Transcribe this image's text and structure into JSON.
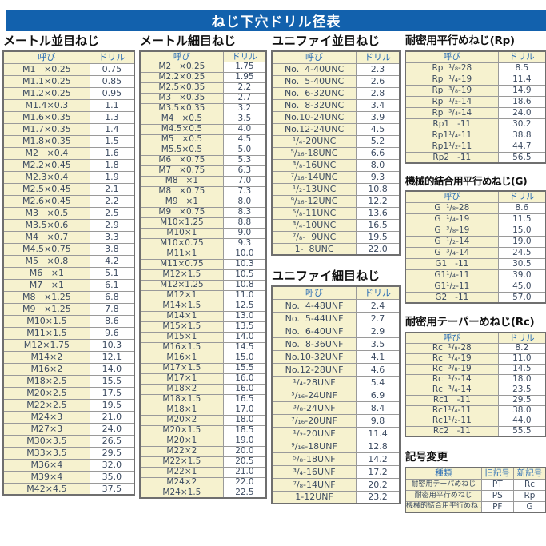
{
  "header": {
    "title": "ねじ下穴ドリル径表"
  },
  "col_headers": {
    "name": "呼び",
    "drill": "ドリル"
  },
  "colors": {
    "banner_bg": "#1261ad",
    "banner_text": "#ffffff",
    "cell_yellow": "#f6f2cf",
    "cell_white": "#ffffff",
    "text_dark": "#3c4b61",
    "header_text_blue": "#2a6db5"
  },
  "tables": {
    "metric_coarse": {
      "title": "メートル並目ねじ",
      "rows": [
        [
          "M1   ×0.25",
          "0.75"
        ],
        [
          "M1.1×0.25",
          "0.85"
        ],
        [
          "M1.2×0.25",
          "0.95"
        ],
        [
          "M1.4×0.3",
          "1.1"
        ],
        [
          "M1.6×0.35",
          "1.3"
        ],
        [
          "M1.7×0.35",
          "1.4"
        ],
        [
          "M1.8×0.35",
          "1.5"
        ],
        [
          "M2   ×0.4",
          "1.6"
        ],
        [
          "M2.2×0.45",
          "1.8"
        ],
        [
          "M2.3×0.4",
          "1.9"
        ],
        [
          "M2.5×0.45",
          "2.1"
        ],
        [
          "M2.6×0.45",
          "2.2"
        ],
        [
          "M3   ×0.5",
          "2.5"
        ],
        [
          "M3.5×0.6",
          "2.9"
        ],
        [
          "M4   ×0.7",
          "3.3"
        ],
        [
          "M4.5×0.75",
          "3.8"
        ],
        [
          "M5   ×0.8",
          "4.2"
        ],
        [
          "M6   ×1",
          "5.1"
        ],
        [
          "M7   ×1",
          "6.1"
        ],
        [
          "M8   ×1.25",
          "6.8"
        ],
        [
          "M9   ×1.25",
          "7.8"
        ],
        [
          "M10×1.5",
          "8.6"
        ],
        [
          "M11×1.5",
          "9.6"
        ],
        [
          "M12×1.75",
          "10.3"
        ],
        [
          "M14×2",
          "12.1"
        ],
        [
          "M16×2",
          "14.0"
        ],
        [
          "M18×2.5",
          "15.5"
        ],
        [
          "M20×2.5",
          "17.5"
        ],
        [
          "M22×2.5",
          "19.5"
        ],
        [
          "M24×3",
          "21.0"
        ],
        [
          "M27×3",
          "24.0"
        ],
        [
          "M30×3.5",
          "26.5"
        ],
        [
          "M33×3.5",
          "29.5"
        ],
        [
          "M36×4",
          "32.0"
        ],
        [
          "M39×4",
          "35.0"
        ],
        [
          "M42×4.5",
          "37.5"
        ]
      ]
    },
    "metric_fine": {
      "title": "メートル細目ねじ",
      "rows": [
        [
          "M2   ×0.25",
          "1.75"
        ],
        [
          "M2.2×0.25",
          "1.95"
        ],
        [
          "M2.5×0.35",
          "2.2"
        ],
        [
          "M3   ×0.35",
          "2.7"
        ],
        [
          "M3.5×0.35",
          "3.2"
        ],
        [
          "M4   ×0.5",
          "3.5"
        ],
        [
          "M4.5×0.5",
          "4.0"
        ],
        [
          "M5   ×0.5",
          "4.5"
        ],
        [
          "M5.5×0.5",
          "5.0"
        ],
        [
          "M6   ×0.75",
          "5.3"
        ],
        [
          "M7   ×0.75",
          "6.3"
        ],
        [
          "M8   ×1",
          "7.0"
        ],
        [
          "M8   ×0.75",
          "7.3"
        ],
        [
          "M9   ×1",
          "8.0"
        ],
        [
          "M9   ×0.75",
          "8.3"
        ],
        [
          "M10×1.25",
          "8.8"
        ],
        [
          "M10×1",
          "9.0"
        ],
        [
          "M10×0.75",
          "9.3"
        ],
        [
          "M11×1",
          "10.0"
        ],
        [
          "M11×0.75",
          "10.3"
        ],
        [
          "M12×1.5",
          "10.5"
        ],
        [
          "M12×1.25",
          "10.8"
        ],
        [
          "M12×1",
          "11.0"
        ],
        [
          "M14×1.5",
          "12.5"
        ],
        [
          "M14×1",
          "13.0"
        ],
        [
          "M15×1.5",
          "13.5"
        ],
        [
          "M15×1",
          "14.0"
        ],
        [
          "M16×1.5",
          "14.5"
        ],
        [
          "M16×1",
          "15.0"
        ],
        [
          "M17×1.5",
          "15.5"
        ],
        [
          "M17×1",
          "16.0"
        ],
        [
          "M18×2",
          "16.0"
        ],
        [
          "M18×1.5",
          "16.5"
        ],
        [
          "M18×1",
          "17.0"
        ],
        [
          "M20×2",
          "18.0"
        ],
        [
          "M20×1.5",
          "18.5"
        ],
        [
          "M20×1",
          "19.0"
        ],
        [
          "M22×2",
          "20.0"
        ],
        [
          "M22×1.5",
          "20.5"
        ],
        [
          "M22×1",
          "21.0"
        ],
        [
          "M24×2",
          "22.0"
        ],
        [
          "M24×1.5",
          "22.5"
        ]
      ]
    },
    "unified_coarse": {
      "title": "ユニファイ並目ねじ",
      "rows": [
        [
          "No.  4-40UNC",
          "2.3"
        ],
        [
          "No.  5-40UNC",
          "2.6"
        ],
        [
          "No.  6-32UNC",
          "2.8"
        ],
        [
          "No.  8-32UNC",
          "3.4"
        ],
        [
          "No.10-24UNC",
          "3.9"
        ],
        [
          "No.12-24UNC",
          "4.5"
        ],
        [
          "¹/₄-20UNC",
          "5.2"
        ],
        [
          "⁵/₁₆-18UNC",
          "6.6"
        ],
        [
          "³/₈-16UNC",
          "8.0"
        ],
        [
          "⁷/₁₆-14UNC",
          "9.3"
        ],
        [
          "¹/₂-13UNC",
          "10.8"
        ],
        [
          "⁹/₁₆-12UNC",
          "12.2"
        ],
        [
          "⁵/₈-11UNC",
          "13.6"
        ],
        [
          "³/₄-10UNC",
          "16.5"
        ],
        [
          "⁷/₈-  9UNC",
          "19.5"
        ],
        [
          "1-  8UNC",
          "22.0"
        ]
      ]
    },
    "unified_fine": {
      "title": "ユニファイ細目ねじ",
      "rows": [
        [
          "No.  4-48UNF",
          "2.4"
        ],
        [
          "No.  5-44UNF",
          "2.7"
        ],
        [
          "No.  6-40UNF",
          "2.9"
        ],
        [
          "No.  8-36UNF",
          "3.5"
        ],
        [
          "No.10-32UNF",
          "4.1"
        ],
        [
          "No.12-28UNF",
          "4.6"
        ],
        [
          "¹/₄-28UNF",
          "5.4"
        ],
        [
          "⁵/₁₆-24UNF",
          "6.9"
        ],
        [
          "³/₈-24UNF",
          "8.4"
        ],
        [
          "⁷/₁₆-20UNF",
          "9.8"
        ],
        [
          "¹/₂-20UNF",
          "11.4"
        ],
        [
          "⁹/₁₆-18UNF",
          "12.8"
        ],
        [
          "⁵/₈-18UNF",
          "14.2"
        ],
        [
          "³/₄-16UNF",
          "17.2"
        ],
        [
          "⁷/₈-14UNF",
          "20.2"
        ],
        [
          "1-12UNF",
          "23.2"
        ]
      ]
    },
    "rp": {
      "title": "耐密用平行めねじ(Rp)",
      "rows": [
        [
          "Rp  ¹/₈-28",
          "8.5"
        ],
        [
          "Rp  ¹/₄-19",
          "11.4"
        ],
        [
          "Rp  ³/₈-19",
          "14.9"
        ],
        [
          "Rp  ¹/₂-14",
          "18.6"
        ],
        [
          "Rp  ³/₄-14",
          "24.0"
        ],
        [
          "Rp1   -11",
          "30.2"
        ],
        [
          "Rp1¹/₄-11",
          "38.8"
        ],
        [
          "Rp1¹/₂-11",
          "44.7"
        ],
        [
          "Rp2   -11",
          "56.5"
        ]
      ]
    },
    "g": {
      "title": "機械的結合用平行めねじ(G)",
      "rows": [
        [
          "G  ¹/₈-28",
          "8.6"
        ],
        [
          "G  ¹/₄-19",
          "11.5"
        ],
        [
          "G  ³/₈-19",
          "15.0"
        ],
        [
          "G  ¹/₂-14",
          "19.0"
        ],
        [
          "G  ³/₄-14",
          "24.5"
        ],
        [
          "G1   -11",
          "30.5"
        ],
        [
          "G1¹/₄-11",
          "39.0"
        ],
        [
          "G1¹/₂-11",
          "45.0"
        ],
        [
          "G2   -11",
          "57.0"
        ]
      ]
    },
    "rc": {
      "title": "耐密用テーパーめねじ(Rc)",
      "rows": [
        [
          "Rc  ¹/₈-28",
          "8.2"
        ],
        [
          "Rc  ¹/₄-19",
          "11.0"
        ],
        [
          "Rc  ³/₈-19",
          "14.5"
        ],
        [
          "Rc  ¹/₂-14",
          "18.0"
        ],
        [
          "Rc  ³/₄-14",
          "23.5"
        ],
        [
          "Rc1   -11",
          "29.5"
        ],
        [
          "Rc1¹/₄-11",
          "38.0"
        ],
        [
          "Rc1¹/₂-11",
          "44.0"
        ],
        [
          "Rc2   -11",
          "55.5"
        ]
      ]
    }
  },
  "symbol_change": {
    "title": "記号変更",
    "headers": [
      "種類",
      "旧記号",
      "新記号"
    ],
    "rows": [
      [
        "耐密用テーパめねじ",
        "PT",
        "Rc"
      ],
      [
        "耐密用平行めねじ",
        "PS",
        "Rp"
      ],
      [
        "機械的結合用平行めねじ",
        "PF",
        "G"
      ]
    ]
  }
}
